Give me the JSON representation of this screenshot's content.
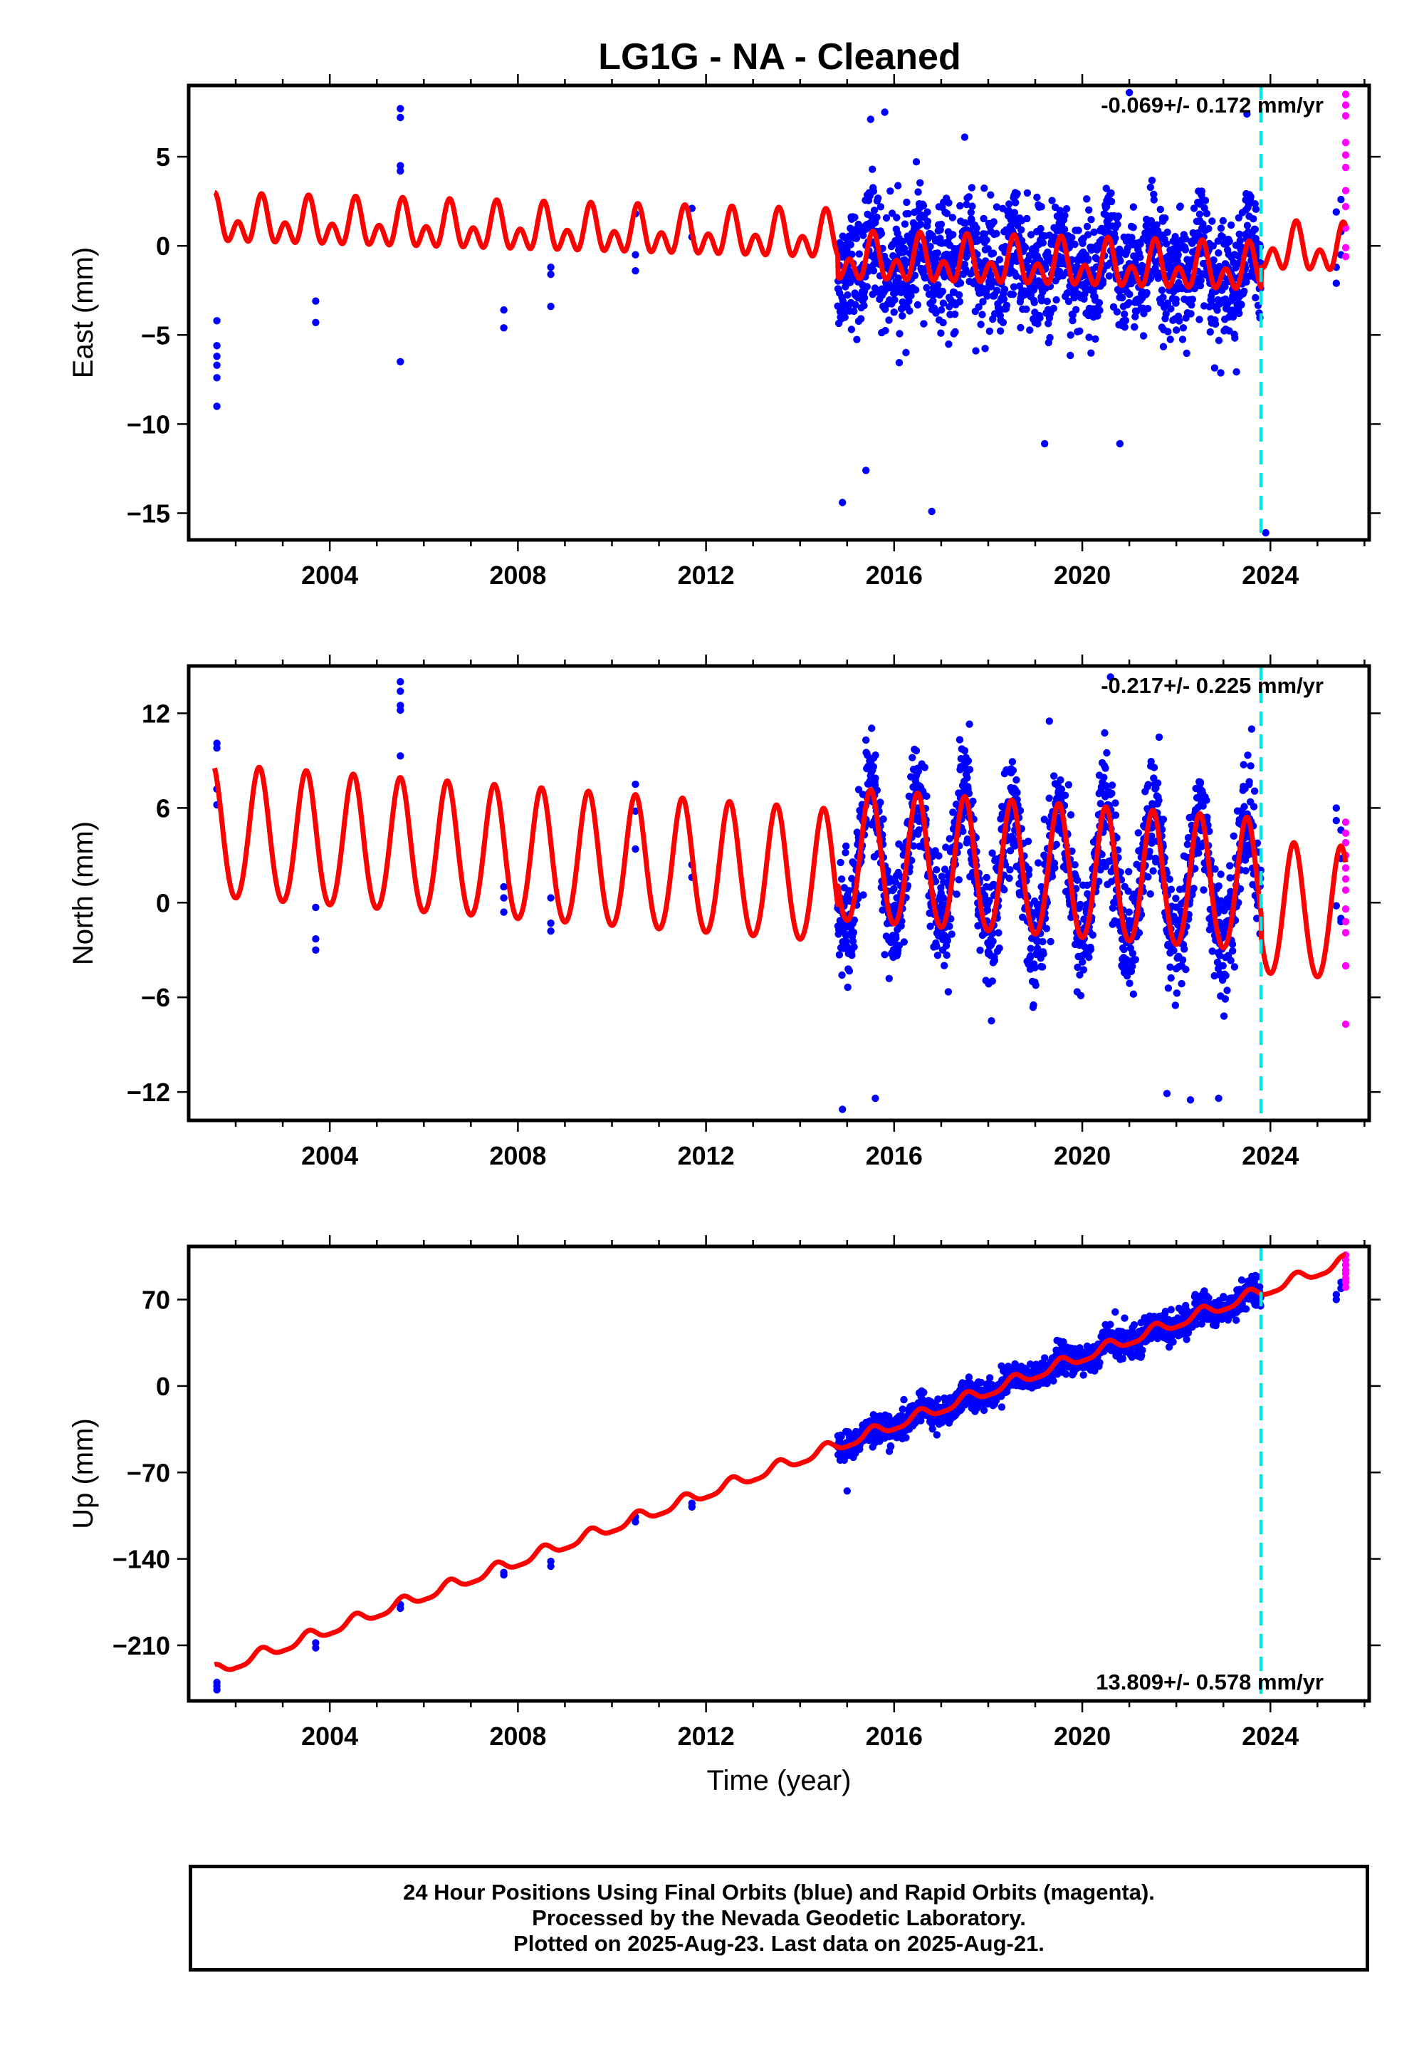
{
  "title": "LG1G  - NA - Cleaned",
  "colors": {
    "final": "#0000ff",
    "rapid": "#ff00ff",
    "model": "#ff0000",
    "event": "#00e5e5",
    "frame": "#000000"
  },
  "chart_data": [
    {
      "type": "scatter",
      "component": "east",
      "ylabel": "East (mm)",
      "xlabel": "",
      "xlim": [
        2001.0,
        2026.1
      ],
      "ylim": [
        -16.5,
        9.0
      ],
      "x_ticks": [
        2004,
        2008,
        2012,
        2016,
        2020,
        2024
      ],
      "y_ticks": [
        5,
        0,
        -5,
        -10,
        -15
      ],
      "y_tick_labels": [
        "5",
        "0",
        "−5",
        "−10",
        "−15"
      ],
      "rate_label": "-0.069+/- 0.172 mm/yr",
      "rate_position": "top-right",
      "event_line_x": 2023.8,
      "model": {
        "offset": 1.3,
        "slope": -0.069,
        "t0": 2001.5,
        "annual_amp": 0.8,
        "semiannual_amp": 0.9,
        "annual_phase_date": 2001.55,
        "semiannual_phase_date": 2001.55,
        "late_offset_after": 2014.8,
        "late_offset": -1.2,
        "resume_offset_after": 2023.8,
        "resume_offset": 1.3
      },
      "dense_period": {
        "start": 2014.8,
        "end": 2023.8,
        "scatter_sd": 1.6,
        "count": 1600,
        "outliers": [
          [
            2014.9,
            -14.4
          ],
          [
            2015.4,
            -12.6
          ],
          [
            2016.8,
            -14.9
          ],
          [
            2019.2,
            -11.1
          ],
          [
            2020.8,
            -11.1
          ],
          [
            2023.9,
            -16.1
          ],
          [
            2021.0,
            8.6
          ],
          [
            2015.5,
            7.1
          ],
          [
            2015.8,
            7.5
          ],
          [
            2017.5,
            6.1
          ],
          [
            2023.5,
            7.4
          ]
        ]
      },
      "early_points": [
        [
          2001.6,
          -4.2
        ],
        [
          2001.6,
          -5.6
        ],
        [
          2001.6,
          -6.2
        ],
        [
          2001.6,
          -6.7
        ],
        [
          2001.6,
          -7.4
        ],
        [
          2001.6,
          -9.0
        ],
        [
          2003.7,
          -3.1
        ],
        [
          2003.7,
          -4.3
        ],
        [
          2005.5,
          7.7
        ],
        [
          2005.5,
          7.2
        ],
        [
          2005.5,
          4.5
        ],
        [
          2005.5,
          4.2
        ],
        [
          2005.5,
          -6.5
        ],
        [
          2007.7,
          -3.6
        ],
        [
          2007.7,
          -4.6
        ],
        [
          2008.7,
          -1.2
        ],
        [
          2008.7,
          -1.6
        ],
        [
          2008.7,
          -3.4
        ],
        [
          2010.5,
          1.8
        ],
        [
          2010.5,
          -0.5
        ],
        [
          2010.5,
          -1.4
        ],
        [
          2011.7,
          2.1
        ],
        [
          2011.7,
          0.5
        ]
      ],
      "late_points": [
        [
          2025.4,
          -1.2
        ],
        [
          2025.4,
          -2.1
        ],
        [
          2025.4,
          1.9
        ],
        [
          2025.5,
          0.8
        ],
        [
          2025.5,
          2.6
        ],
        [
          2025.5,
          -0.5
        ]
      ],
      "rapid_points": [
        [
          2025.6,
          8.5
        ],
        [
          2025.6,
          7.9
        ],
        [
          2025.6,
          7.3
        ],
        [
          2025.6,
          5.8
        ],
        [
          2025.6,
          5.1
        ],
        [
          2025.6,
          4.4
        ],
        [
          2025.6,
          3.1
        ],
        [
          2025.6,
          2.2
        ],
        [
          2025.6,
          1.0
        ],
        [
          2025.6,
          -0.1
        ],
        [
          2025.6,
          -0.6
        ]
      ]
    },
    {
      "type": "scatter",
      "component": "north",
      "ylabel": "North (mm)",
      "xlabel": "",
      "xlim": [
        2001.0,
        2026.1
      ],
      "ylim": [
        -13.8,
        15.0
      ],
      "x_ticks": [
        2004,
        2008,
        2012,
        2016,
        2020,
        2024
      ],
      "y_ticks": [
        12,
        6,
        0,
        -6,
        -12
      ],
      "y_tick_labels": [
        "12",
        "6",
        "0",
        "−6",
        "−12"
      ],
      "rate_label": "-0.217+/- 0.225 mm/yr",
      "rate_position": "top-right",
      "event_line_x": 2023.8,
      "model": {
        "offset": 4.3,
        "slope": -0.217,
        "t0": 2001.5,
        "annual_amp": 4.2,
        "semiannual_amp": 0.3,
        "annual_phase_date": 2002.5,
        "semiannual_phase_date": 2002.5,
        "late_offset_after": 2014.8,
        "late_offset": 1.4,
        "resume_offset_after": 2023.8,
        "resume_offset": 1.4
      },
      "dense_period": {
        "start": 2014.8,
        "end": 2023.8,
        "scatter_sd": 1.8,
        "count": 1600,
        "outliers": [
          [
            2014.9,
            -13.1
          ],
          [
            2015.6,
            -12.4
          ],
          [
            2021.8,
            -12.1
          ],
          [
            2022.3,
            -12.5
          ],
          [
            2022.9,
            -12.4
          ],
          [
            2019.3,
            11.5
          ],
          [
            2015.4,
            10.3
          ],
          [
            2023.6,
            11.0
          ],
          [
            2020.6,
            14.3
          ]
        ]
      },
      "early_points": [
        [
          2001.6,
          10.1
        ],
        [
          2001.6,
          9.8
        ],
        [
          2001.6,
          7.2
        ],
        [
          2001.6,
          6.2
        ],
        [
          2003.7,
          -0.3
        ],
        [
          2003.7,
          -2.3
        ],
        [
          2003.7,
          -3.0
        ],
        [
          2005.5,
          14.0
        ],
        [
          2005.5,
          13.4
        ],
        [
          2005.5,
          12.5
        ],
        [
          2005.5,
          12.2
        ],
        [
          2005.5,
          9.3
        ],
        [
          2007.7,
          1.0
        ],
        [
          2007.7,
          0.3
        ],
        [
          2007.7,
          -0.6
        ],
        [
          2008.7,
          0.3
        ],
        [
          2008.7,
          -1.3
        ],
        [
          2008.7,
          -1.8
        ],
        [
          2010.5,
          7.5
        ],
        [
          2010.5,
          5.8
        ],
        [
          2010.5,
          3.4
        ],
        [
          2011.7,
          2.4
        ],
        [
          2011.7,
          1.6
        ]
      ],
      "late_points": [
        [
          2025.4,
          6.0
        ],
        [
          2025.4,
          5.2
        ],
        [
          2025.4,
          -0.2
        ],
        [
          2025.5,
          -1.2
        ],
        [
          2025.5,
          2.8
        ],
        [
          2025.5,
          4.6
        ],
        [
          2025.5,
          -1.0
        ]
      ],
      "rapid_points": [
        [
          2025.6,
          5.1
        ],
        [
          2025.6,
          4.4
        ],
        [
          2025.6,
          3.8
        ],
        [
          2025.6,
          3.0
        ],
        [
          2025.6,
          2.2
        ],
        [
          2025.6,
          1.5
        ],
        [
          2025.6,
          0.8
        ],
        [
          2025.6,
          -0.4
        ],
        [
          2025.6,
          -1.2
        ],
        [
          2025.6,
          -1.9
        ],
        [
          2025.6,
          -4.0
        ],
        [
          2025.6,
          -7.7
        ]
      ]
    },
    {
      "type": "scatter",
      "component": "up",
      "ylabel": "Up (mm)",
      "xlabel": "Time (year)",
      "xlim": [
        2001.0,
        2026.1
      ],
      "ylim": [
        -255,
        113
      ],
      "x_ticks": [
        2004,
        2008,
        2012,
        2016,
        2020,
        2024
      ],
      "y_ticks": [
        70,
        0,
        -70,
        -140,
        -210
      ],
      "y_tick_labels": [
        "70",
        "0",
        "−70",
        "−140",
        "−210"
      ],
      "rate_label": "13.809+/- 0.578 mm/yr",
      "rate_position": "bottom-right",
      "event_line_x": 2023.8,
      "model": {
        "offset": -232,
        "slope": 13.809,
        "t0": 2001.5,
        "annual_amp": 4.5,
        "semiannual_amp": 1.2,
        "annual_phase_date": 2001.55,
        "semiannual_phase_date": 2001.55,
        "late_offset_after": 2014.8,
        "late_offset": 0,
        "resume_offset_after": 2023.8,
        "resume_offset": 0
      },
      "dense_period": {
        "start": 2014.8,
        "end": 2023.8,
        "scatter_sd": 5.5,
        "count": 1600,
        "outliers": [
          [
            2020.7,
            60
          ],
          [
            2020.9,
            55
          ],
          [
            2021.8,
            38
          ],
          [
            2022.6,
            55
          ],
          [
            2019.5,
            22
          ],
          [
            2015.0,
            -85
          ]
        ]
      },
      "early_points": [
        [
          2001.6,
          -240
        ],
        [
          2001.6,
          -243
        ],
        [
          2001.6,
          -246
        ],
        [
          2003.7,
          -208
        ],
        [
          2003.7,
          -212
        ],
        [
          2005.5,
          -177
        ],
        [
          2005.5,
          -180
        ],
        [
          2007.7,
          -151
        ],
        [
          2007.7,
          -153
        ],
        [
          2008.7,
          -142
        ],
        [
          2008.7,
          -146
        ],
        [
          2010.5,
          -106
        ],
        [
          2010.5,
          -110
        ],
        [
          2011.7,
          -95
        ],
        [
          2011.7,
          -98
        ]
      ],
      "late_points": [
        [
          2025.4,
          74
        ],
        [
          2025.4,
          70
        ],
        [
          2025.5,
          79
        ],
        [
          2025.5,
          84
        ]
      ],
      "rapid_points": [
        [
          2025.6,
          106
        ],
        [
          2025.6,
          102
        ],
        [
          2025.6,
          98
        ],
        [
          2025.6,
          94
        ],
        [
          2025.6,
          91
        ],
        [
          2025.6,
          87
        ],
        [
          2025.6,
          84
        ],
        [
          2025.6,
          80
        ]
      ]
    }
  ],
  "footer": {
    "line1": "24 Hour Positions Using Final Orbits (blue) and Rapid Orbits (magenta).",
    "line2": "Processed by the Nevada Geodetic Laboratory.",
    "line3": "Plotted on 2025-Aug-23. Last data on 2025-Aug-21."
  }
}
